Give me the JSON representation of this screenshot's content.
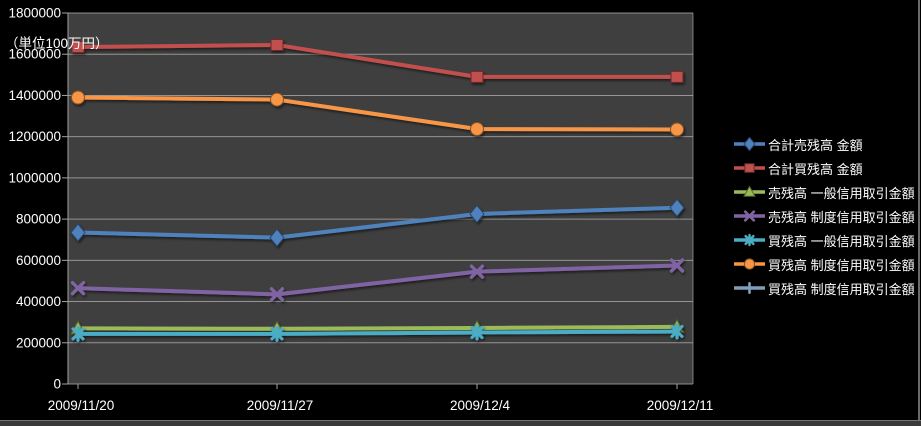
{
  "chart": {
    "unit_label": "（単位100万円）",
    "colors": {
      "background": "#000000",
      "plot_background": "#3F3F3F",
      "gridline": "#A3A3A3",
      "text": "#FFFFFF"
    }
  },
  "chart_data": {
    "type": "line",
    "title": "",
    "ylabel": "（単位100万円）",
    "xlabel": "",
    "categories": [
      "2009/11/20",
      "2009/11/27",
      "2009/12/4",
      "2009/12/11"
    ],
    "series": [
      {
        "name": "合計売残高 金額",
        "marker": "diamond",
        "color": "#4F81BD",
        "values": [
          735000,
          710000,
          825000,
          855000
        ]
      },
      {
        "name": "合計買残高 金額",
        "marker": "square",
        "color": "#C0504D",
        "values": [
          1635000,
          1645000,
          1490000,
          1490000
        ]
      },
      {
        "name": "売残高 一般信用取引金額",
        "marker": "triangle",
        "color": "#9BBB59",
        "values": [
          270000,
          268000,
          272000,
          277000
        ]
      },
      {
        "name": "売残高 制度信用取引金額",
        "marker": "x",
        "color": "#8064A2",
        "values": [
          465000,
          435000,
          545000,
          575000
        ]
      },
      {
        "name": "買残高 一般信用取引金額",
        "marker": "asterisk",
        "color": "#4BACC6",
        "values": [
          243000,
          243000,
          250000,
          255000
        ]
      },
      {
        "name": "買残高 制度信用取引金額",
        "marker": "circle",
        "color": "#F79646",
        "values": [
          1390000,
          1380000,
          1237000,
          1235000
        ]
      },
      {
        "name": "買残高 制度信用取引金額",
        "marker": "plus",
        "color": "#7F9DB9",
        "values": []
      }
    ],
    "ylim": [
      0,
      1800000
    ],
    "y_tick_step": 200000,
    "y_tick_labels": [
      "0",
      "200000",
      "400000",
      "600000",
      "800000",
      "1000000",
      "1200000",
      "1400000",
      "1600000",
      "1800000"
    ],
    "grid": true,
    "legend_position": "right"
  }
}
